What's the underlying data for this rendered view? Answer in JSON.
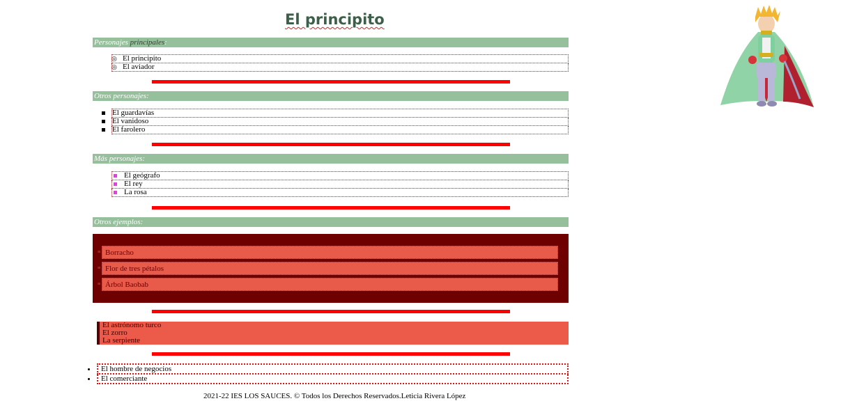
{
  "title": "El principito",
  "sections": {
    "main": {
      "label_a": "Personajes ",
      "label_b": "principales",
      "label_c": ":",
      "items": [
        "El principito",
        "El aviador"
      ]
    },
    "others": {
      "label": "Otros personajes:",
      "items": [
        "El guardavías",
        "El vanidoso",
        "El farolero"
      ]
    },
    "more": {
      "label": "Más personajes:",
      "items": [
        "El geógrafo",
        "El rey",
        "La rosa"
      ]
    },
    "examples": {
      "label": "Otros ejemplos:",
      "items": [
        "Borracho",
        "Flor de tres pétalos",
        "Árbol Baobab"
      ]
    },
    "coral": {
      "items": [
        "El astrónomo turco",
        "El zorro",
        "La serpiente"
      ]
    },
    "last": {
      "items": [
        "El hombre de negocios",
        "El comerciante"
      ]
    }
  },
  "footer": "2021-22 IES LOS SAUCES. © Todos los Derechos Reservados.Leticia Rivera López",
  "colors": {
    "band": "#96bf9b",
    "separator": "#ff0000",
    "dark_box": "#6e0000",
    "coral": "#ec5a4a"
  }
}
